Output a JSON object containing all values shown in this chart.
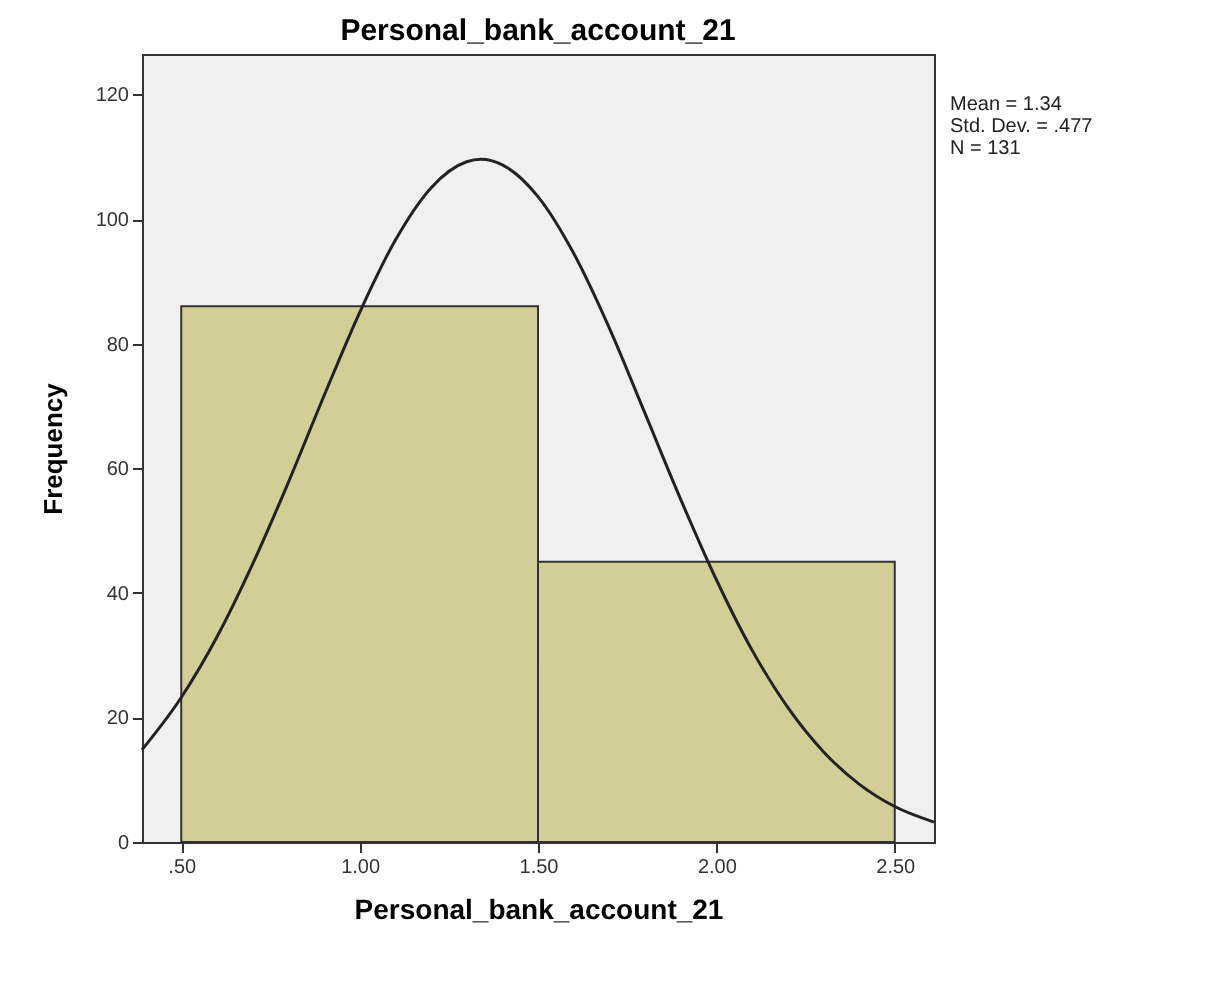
{
  "chart_data": {
    "type": "histogram",
    "title": "Personal_bank_account_21",
    "xlabel": "Personal_bank_account_21",
    "ylabel": "Frequency",
    "annotations": [
      "Mean = 1.34",
      "Std. Dev. = .477",
      "N = 131"
    ],
    "xlim": [
      0.39,
      2.61
    ],
    "xticks": [
      {
        "value": 0.5,
        "label": ".50"
      },
      {
        "value": 1.0,
        "label": "1.00"
      },
      {
        "value": 1.5,
        "label": "1.50"
      },
      {
        "value": 2.0,
        "label": "2.00"
      },
      {
        "value": 2.5,
        "label": "2.50"
      }
    ],
    "ylim": [
      0,
      126.5
    ],
    "yticks": [
      0,
      20,
      40,
      60,
      80,
      100,
      120
    ],
    "grid": false,
    "series": [
      {
        "type": "histogram",
        "bins": [
          0.5,
          1.5,
          2.5
        ],
        "values": [
          86,
          45
        ],
        "color": "#d3ce97"
      },
      {
        "type": "line",
        "color": "#222222",
        "x": [
          0.39,
          0.5,
          0.6,
          0.7,
          0.8,
          0.9,
          1.0,
          1.1,
          1.2,
          1.3,
          1.34,
          1.4,
          1.5,
          1.6,
          1.7,
          1.8,
          1.9,
          2.0,
          2.1,
          2.2,
          2.3,
          2.4,
          2.5,
          2.61
        ],
        "values": [
          14.8,
          23.2,
          32.9,
          44.6,
          57.7,
          71.6,
          85.0,
          96.6,
          105.0,
          109.2,
          109.6,
          108.7,
          103.6,
          94.5,
          82.5,
          68.8,
          55.0,
          42.1,
          30.8,
          21.6,
          14.5,
          9.3,
          5.7,
          3.2
        ]
      }
    ]
  }
}
